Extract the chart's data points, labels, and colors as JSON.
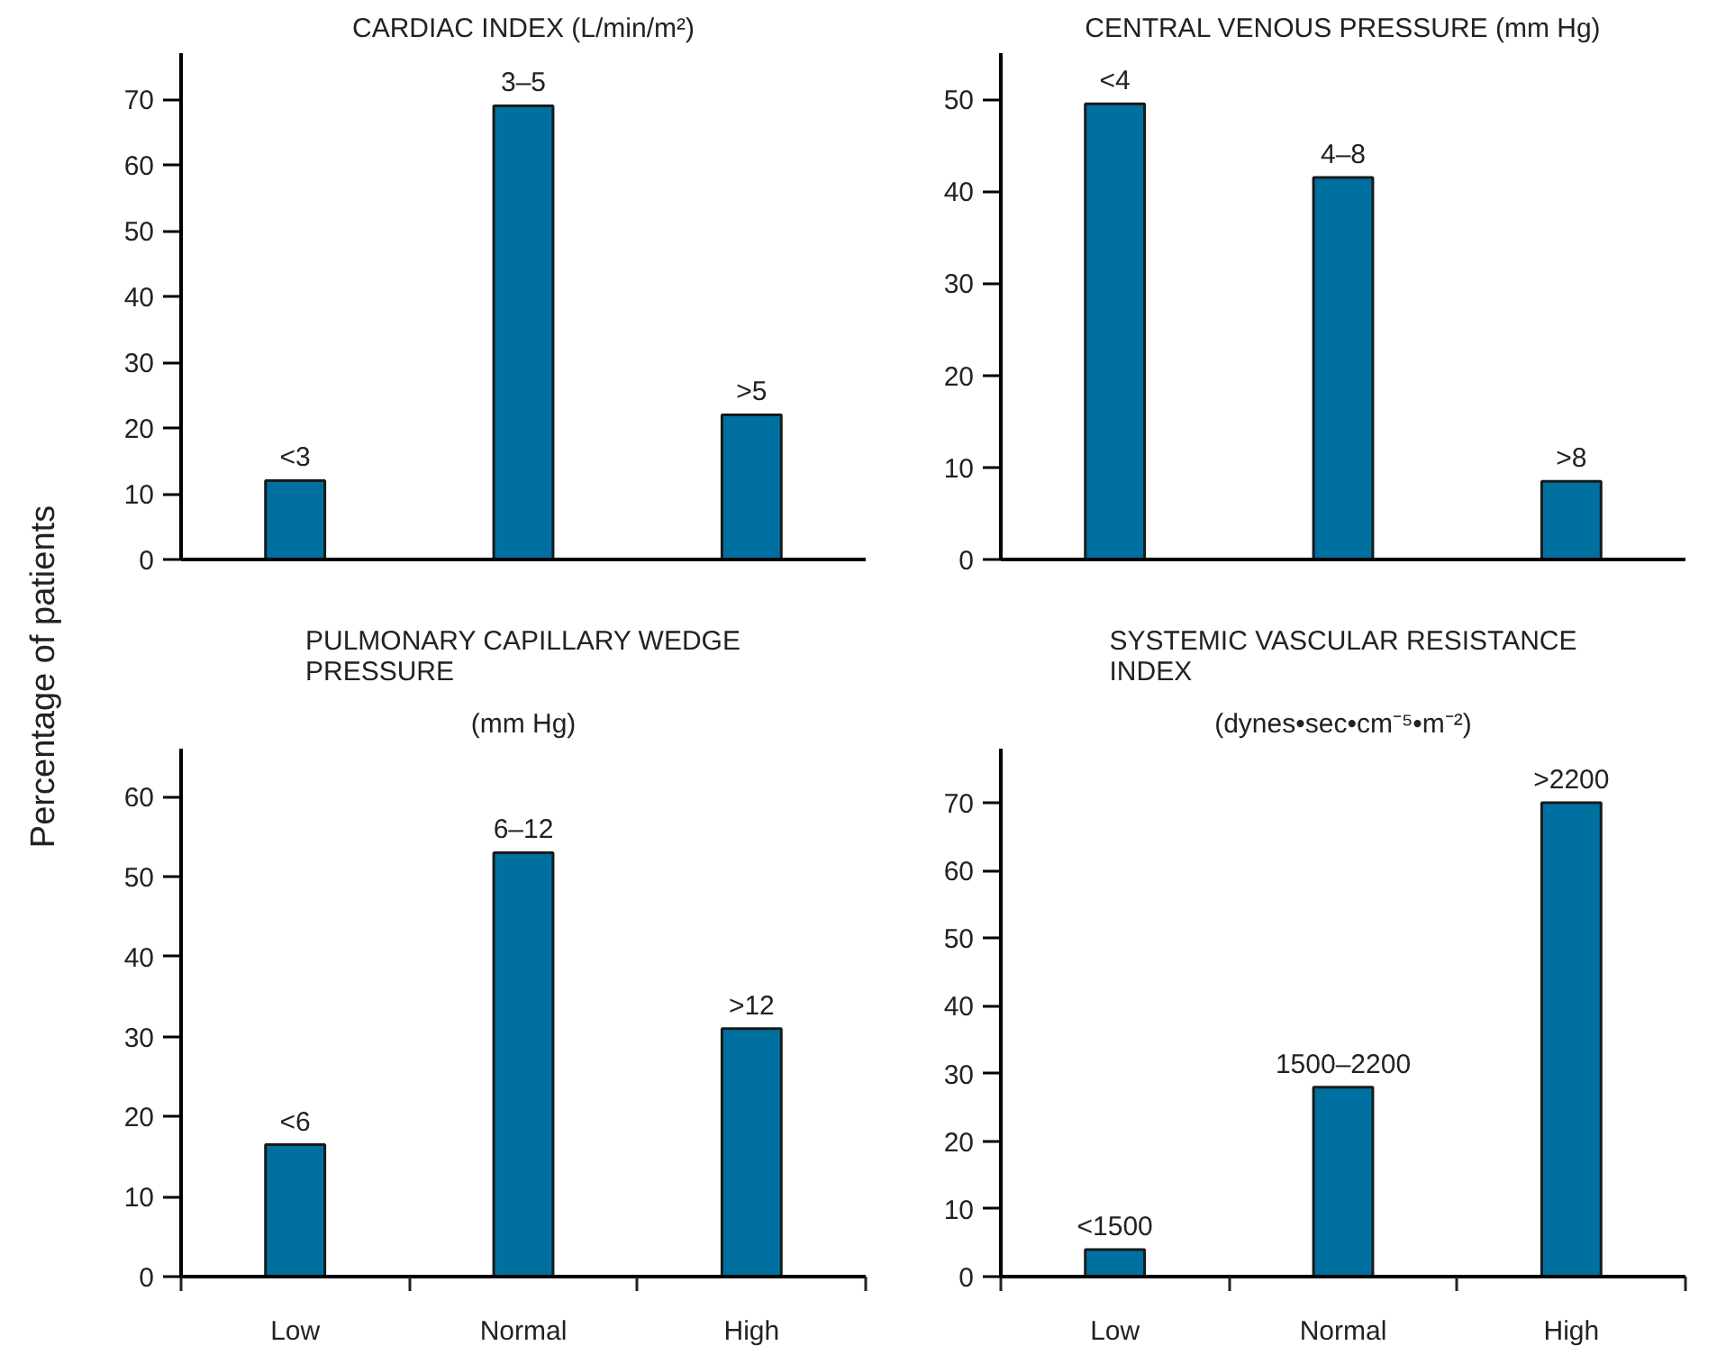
{
  "chart_data": [
    {
      "type": "bar",
      "title": "CARDIAC INDEX (L/min/m²)",
      "ylabel": "Percentage of patients",
      "categories": [
        null,
        null,
        null
      ],
      "values": [
        12,
        69,
        22
      ],
      "value_labels": [
        "<3",
        "3–5",
        ">5"
      ],
      "color": "#0070a0",
      "ylim": [
        0,
        77
      ],
      "yticks": [
        0,
        10,
        20,
        30,
        40,
        50,
        60,
        70
      ],
      "grid": false,
      "tick_labels": "y"
    },
    {
      "type": "bar",
      "title": "CENTRAL VENOUS PRESSURE (mm Hg)",
      "categories": [
        null,
        null,
        null
      ],
      "values": [
        49.5,
        41.5,
        8.5
      ],
      "value_labels": [
        "<4",
        "4–8",
        ">8"
      ],
      "color": "#0070a0",
      "ylim": [
        0,
        55
      ],
      "yticks": [
        0,
        10,
        20,
        30,
        40,
        50
      ],
      "grid": false,
      "tick_labels": "y"
    },
    {
      "type": "bar",
      "title": "PULMONARY CAPILLARY WEDGE PRESSURE",
      "subtitle": "(mm Hg)",
      "categories": [
        "Low",
        "Normal",
        "High"
      ],
      "values": [
        16.5,
        53,
        31
      ],
      "value_labels": [
        "<6",
        "6–12",
        ">12"
      ],
      "color": "#0070a0",
      "ylim": [
        0,
        66
      ],
      "yticks": [
        0,
        10,
        20,
        30,
        40,
        50,
        60
      ],
      "grid": false
    },
    {
      "type": "bar",
      "title": "SYSTEMIC VASCULAR RESISTANCE INDEX",
      "subtitle": "(dynes•sec•cm⁻⁵•m⁻²)",
      "categories": [
        "Low",
        "Normal",
        "High"
      ],
      "values": [
        4,
        28,
        70
      ],
      "value_labels": [
        "<1500",
        "1500–2200",
        ">2200"
      ],
      "color": "#0070a0",
      "ylim": [
        0,
        78
      ],
      "yticks": [
        0,
        10,
        20,
        30,
        40,
        50,
        60,
        70
      ],
      "grid": false
    }
  ]
}
